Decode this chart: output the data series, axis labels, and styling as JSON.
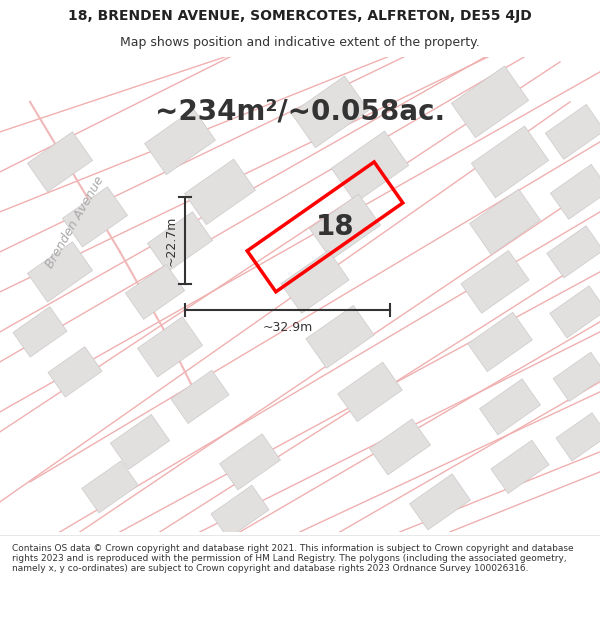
{
  "title_line1": "18, BRENDEN AVENUE, SOMERCOTES, ALFRETON, DE55 4JD",
  "title_line2": "Map shows position and indicative extent of the property.",
  "area_text": "~234m²/~0.058ac.",
  "house_number": "18",
  "dim_width": "~32.9m",
  "dim_height": "~22.7m",
  "street_label": "Brenden Avenue",
  "footer_text": "Contains OS data © Crown copyright and database right 2021. This information is subject to Crown copyright and database rights 2023 and is reproduced with the permission of HM Land Registry. The polygons (including the associated geometry, namely x, y co-ordinates) are subject to Crown copyright and database rights 2023 Ordnance Survey 100026316.",
  "map_bg": "#f2f0f0",
  "property_color": "#ff0000",
  "dim_color": "#333333"
}
